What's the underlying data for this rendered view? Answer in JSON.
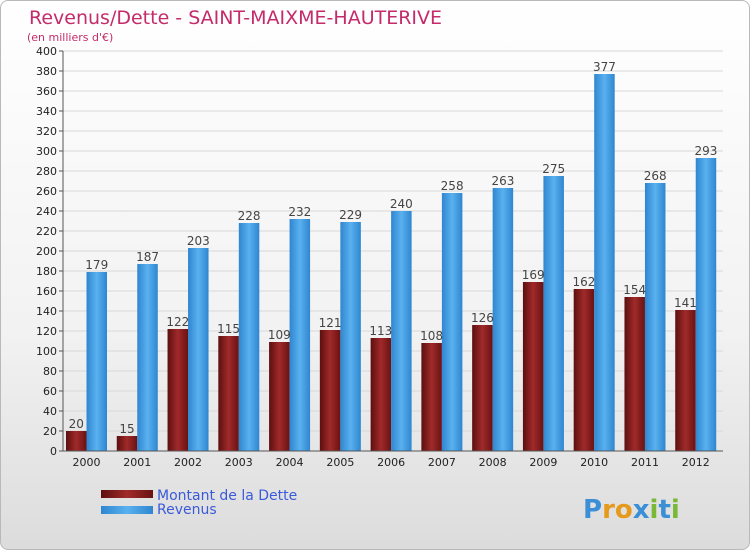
{
  "title": "Revenus/Dette - SAINT-MAIXME-HAUTERIVE",
  "subtitle": "(en milliers d'€)",
  "logo_text": "Proxiti",
  "colors": {
    "dette": "#8b1a1a",
    "revenus": "#3a95dc",
    "title": "#c42b6a"
  },
  "chart_data": {
    "type": "bar",
    "categories": [
      "2000",
      "2001",
      "2002",
      "2003",
      "2004",
      "2005",
      "2006",
      "2007",
      "2008",
      "2009",
      "2010",
      "2011",
      "2012"
    ],
    "series": [
      {
        "name": "Montant de la Dette",
        "values": [
          20,
          15,
          122,
          115,
          109,
          121,
          113,
          108,
          126,
          169,
          162,
          154,
          141
        ]
      },
      {
        "name": "Revenus",
        "values": [
          179,
          187,
          203,
          228,
          232,
          229,
          240,
          258,
          263,
          275,
          377,
          268,
          293
        ]
      }
    ],
    "ylim": [
      0,
      400
    ],
    "yticks": [
      0,
      20,
      40,
      60,
      80,
      100,
      120,
      140,
      160,
      180,
      200,
      220,
      240,
      260,
      280,
      300,
      320,
      340,
      360,
      380,
      400
    ],
    "grid": true,
    "legend_position": "bottom-left"
  }
}
